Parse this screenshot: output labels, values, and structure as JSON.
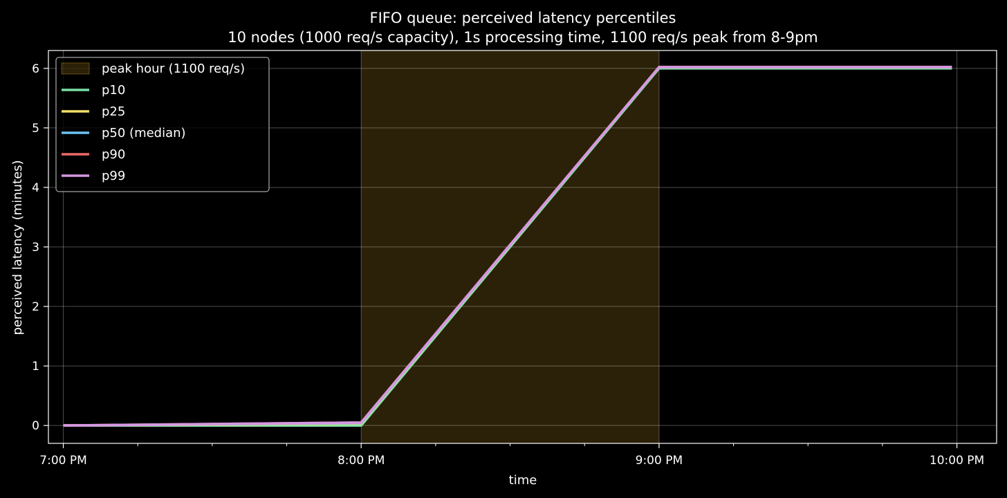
{
  "chart_data": {
    "type": "line",
    "title": "FIFO queue: perceived latency percentiles",
    "subtitle": "10 nodes (1000 req/s capacity), 1s processing time, 1100 req/s peak from 8-9pm",
    "xlabel": "time",
    "ylabel": "perceived latency (minutes)",
    "xlim": [
      "18:57",
      "22:08"
    ],
    "ylim": [
      -0.3,
      6.3
    ],
    "x_ticks": [
      "19:00",
      "20:00",
      "21:00",
      "22:00"
    ],
    "x_tick_labels": [
      "7:00 PM",
      "8:00 PM",
      "9:00 PM",
      "10:00 PM"
    ],
    "x_minor_ticks": [
      "19:15",
      "19:30",
      "19:45",
      "20:15",
      "20:30",
      "20:45",
      "21:15",
      "21:30",
      "21:45"
    ],
    "y_ticks": [
      0,
      1,
      2,
      3,
      4,
      5,
      6
    ],
    "grid": true,
    "legend_position": "top-left",
    "shaded_region": {
      "label": "peak hour (1100 req/s)",
      "x_start": "20:00",
      "x_end": "21:00",
      "color": "#b58a22"
    },
    "series": [
      {
        "name": "p10",
        "color": "#7be0a6",
        "x": [
          "19:00",
          "20:00",
          "21:00",
          "21:59"
        ],
        "y": [
          0.0,
          0.0,
          6.0,
          6.0
        ]
      },
      {
        "name": "p25",
        "color": "#f2e16c",
        "x": [
          "19:00",
          "20:00",
          "21:00",
          "21:59"
        ],
        "y": [
          0.0,
          0.03,
          6.02,
          6.02
        ]
      },
      {
        "name": "p50 (median)",
        "color": "#6cc3ef",
        "x": [
          "19:00",
          "20:00",
          "21:00",
          "21:59"
        ],
        "y": [
          0.0,
          0.04,
          6.02,
          6.02
        ]
      },
      {
        "name": "p90",
        "color": "#ee6a6a",
        "x": [
          "19:00",
          "20:00",
          "21:00",
          "21:59"
        ],
        "y": [
          0.0,
          0.05,
          6.02,
          6.02
        ]
      },
      {
        "name": "p99",
        "color": "#d597e2",
        "x": [
          "19:00",
          "20:00",
          "21:00",
          "21:59"
        ],
        "y": [
          0.0,
          0.05,
          6.02,
          6.02
        ]
      }
    ]
  }
}
